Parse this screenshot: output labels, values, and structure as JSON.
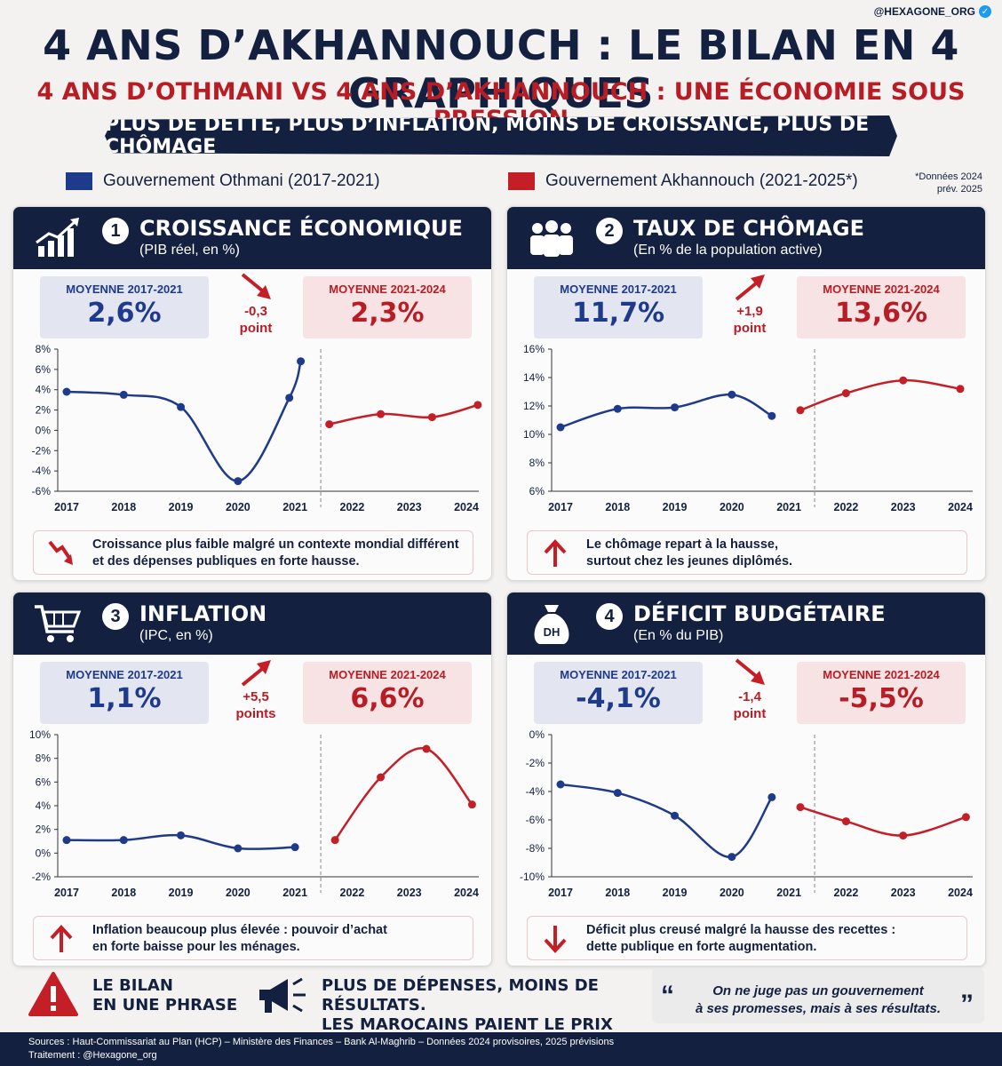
{
  "handle": "@HEXAGONE_ORG",
  "title": "4 ANS D’AKHANNOUCH : LE BILAN EN 4 GRAPHIQUES",
  "subtitle": "4 ANS D’OTHMANI VS 4 ANS D’AKHANNOUCH : UNE ÉCONOMIE SOUS PRESSION",
  "banner": "PLUS DE DETTE, PLUS D’INFLATION, MOINS DE CROISSANCE, PLUS DE CHÔMAGE",
  "legend": {
    "othmani": "Gouvernement Othmani (2017-2021)",
    "akhannouch": "Gouvernement Akhannouch (2021-2025*)",
    "footnote_line1": "*Données 2024",
    "footnote_line2": "prév. 2025"
  },
  "colors": {
    "navy": "#13203f",
    "blue": "#1e3a8a",
    "red": "#c41e26"
  },
  "panels": [
    {
      "num": "1",
      "title": "CROISSANCE ÉCONOMIQUE",
      "subtitle": "(PIB réel, en %)",
      "icon": "growth-chart-icon",
      "avg_blue_label": "MOYENNE 2017-2021",
      "avg_blue_value": "2,6%",
      "avg_red_label": "MOYENNE 2021-2024",
      "avg_red_value": "2,3%",
      "change_line1": "-0,3",
      "change_line2": "point",
      "change_dir": "down",
      "note_line1": "Croissance plus faible malgré un contexte mondial différent",
      "note_line2": "et des dépenses publiques en forte hausse.",
      "note_icon": "down-zigzag-arrow-icon"
    },
    {
      "num": "2",
      "title": "TAUX DE CHÔMAGE",
      "subtitle": "(En % de la population active)",
      "icon": "people-icon",
      "avg_blue_label": "MOYENNE 2017-2021",
      "avg_blue_value": "11,7%",
      "avg_red_label": "MOYENNE 2021-2024",
      "avg_red_value": "13,6%",
      "change_line1": "+1,9",
      "change_line2": "point",
      "change_dir": "up",
      "note_line1": "Le chômage repart à la hausse,",
      "note_line2": "surtout chez les jeunes diplômés.",
      "note_icon": "up-arrow-icon"
    },
    {
      "num": "3",
      "title": "INFLATION",
      "subtitle": "(IPC, en %)",
      "icon": "shopping-cart-icon",
      "avg_blue_label": "MOYENNE 2017-2021",
      "avg_blue_value": "1,1%",
      "avg_red_label": "MOYENNE 2021-2024",
      "avg_red_value": "6,6%",
      "change_line1": "+5,5",
      "change_line2": "points",
      "change_dir": "up",
      "note_line1": "Inflation beaucoup plus élevée : pouvoir d’achat",
      "note_line2": "en forte baisse pour les ménages.",
      "note_icon": "up-arrow-icon"
    },
    {
      "num": "4",
      "title": "DÉFICIT BUDGÉTAIRE",
      "subtitle": "(En % du PIB)",
      "icon": "money-bag-icon",
      "icon_text": "DH",
      "avg_blue_label": "MOYENNE 2017-2021",
      "avg_blue_value": "-4,1%",
      "avg_red_label": "MOYENNE 2021-2024",
      "avg_red_value": "-5,5%",
      "change_line1": "-1,4",
      "change_line2": "point",
      "change_dir": "down",
      "note_line1": "Déficit plus creusé malgré la hausse des recettes :",
      "note_line2": "dette publique en forte augmentation.",
      "note_icon": "down-arrow-icon"
    }
  ],
  "chart_data": [
    {
      "type": "line",
      "title": "CROISSANCE ÉCONOMIQUE",
      "x_labels": [
        "2017",
        "2018",
        "2019",
        "2020",
        "2021",
        "2022",
        "2023",
        "2024"
      ],
      "y_ticks": [
        "8%",
        "6%",
        "4%",
        "2%",
        "0%",
        "-2%",
        "-4%",
        "-6%"
      ],
      "ylim": [
        -6,
        8
      ],
      "series": [
        {
          "color": "#1e3a8a",
          "x": [
            2017,
            2018,
            2019,
            2020,
            2020.9,
            2021.1
          ],
          "y": [
            3.8,
            3.5,
            2.3,
            -5.0,
            3.2,
            6.8
          ]
        },
        {
          "color": "#c41e26",
          "x": [
            2021.6,
            2022.5,
            2023.4,
            2024.2
          ],
          "y": [
            0.6,
            1.6,
            1.3,
            2.5
          ]
        }
      ]
    },
    {
      "type": "line",
      "title": "TAUX DE CHÔMAGE",
      "x_labels": [
        "2017",
        "2018",
        "2019",
        "2020",
        "2021",
        "2022",
        "2023",
        "2024"
      ],
      "y_ticks": [
        "16%",
        "14%",
        "12%",
        "10%",
        "8%",
        "6%"
      ],
      "ylim": [
        6,
        16
      ],
      "series": [
        {
          "color": "#1e3a8a",
          "x": [
            2017,
            2018,
            2019,
            2020,
            2020.7
          ],
          "y": [
            10.5,
            11.8,
            11.9,
            12.8,
            11.3
          ]
        },
        {
          "color": "#c41e26",
          "x": [
            2021.2,
            2022,
            2023,
            2024
          ],
          "y": [
            11.7,
            12.9,
            13.8,
            13.2
          ]
        }
      ]
    },
    {
      "type": "line",
      "title": "INFLATION",
      "x_labels": [
        "2017",
        "2018",
        "2019",
        "2020",
        "2021",
        "2022",
        "2023",
        "2024"
      ],
      "y_ticks": [
        "10%",
        "8%",
        "6%",
        "4%",
        "2%",
        "0%",
        "-2%"
      ],
      "ylim": [
        -2,
        10
      ],
      "series": [
        {
          "color": "#1e3a8a",
          "x": [
            2017,
            2018,
            2019,
            2020,
            2021
          ],
          "y": [
            1.1,
            1.1,
            1.5,
            0.4,
            0.5
          ]
        },
        {
          "color": "#c41e26",
          "x": [
            2021.7,
            2022.5,
            2023.3,
            2024.1
          ],
          "y": [
            1.1,
            6.4,
            8.8,
            4.1
          ]
        }
      ]
    },
    {
      "type": "line",
      "title": "DÉFICIT BUDGÉTAIRE",
      "x_labels": [
        "2017",
        "2018",
        "2019",
        "2020",
        "2021",
        "2022",
        "2023",
        "2024"
      ],
      "y_ticks": [
        "0%",
        "-2%",
        "-4%",
        "-6%",
        "-8%",
        "-10%"
      ],
      "ylim": [
        -10,
        0
      ],
      "series": [
        {
          "color": "#1e3a8a",
          "x": [
            2017,
            2018,
            2019,
            2020,
            2020.7
          ],
          "y": [
            -3.5,
            -4.1,
            -5.7,
            -8.6,
            -4.4
          ]
        },
        {
          "color": "#c41e26",
          "x": [
            2021.2,
            2022,
            2023,
            2024.1
          ],
          "y": [
            -5.1,
            -6.1,
            -7.1,
            -5.8
          ]
        }
      ]
    }
  ],
  "bottom": {
    "bilan_line1": "LE BILAN",
    "bilan_line2": "EN UNE PHRASE",
    "message_line1": "PLUS DE DÉPENSES, MOINS DE RÉSULTATS.",
    "message_line2": "LES MAROCAINS PAIENT LE PRIX FORT.",
    "quote_line1": "On ne juge pas un gouvernement",
    "quote_line2": "à ses promesses, mais à ses résultats.",
    "quote_open": "“",
    "quote_close": "”"
  },
  "footer": {
    "sources": "Sources : Haut-Commissariat au Plan (HCP) – Ministère des Finances – Bank Al-Maghrib – Données 2024 provisoires, 2025 prévisions",
    "credit": "Traitement : @Hexagone_org"
  }
}
